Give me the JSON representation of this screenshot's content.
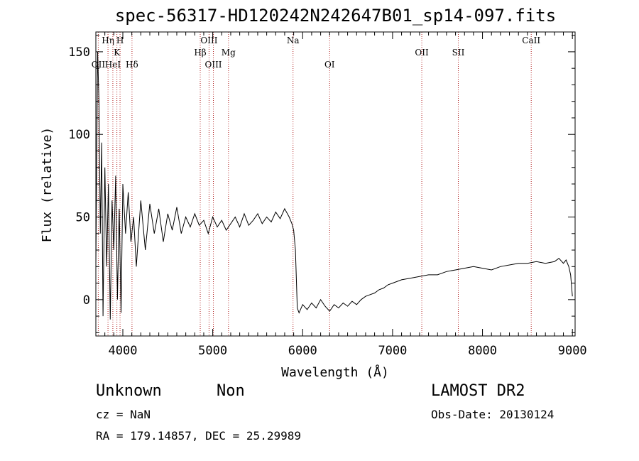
{
  "header": {
    "title": "spec-56317-HD120242N242647B01_sp14-097.fits"
  },
  "footer": {
    "class": "Unknown",
    "subclass": "Non",
    "survey": "LAMOST DR2",
    "cz": "cz = NaN",
    "obs_date": "Obs-Date: 20130124",
    "radec": "RA = 179.14857, DEC =  25.29989"
  },
  "chart_data": {
    "type": "line",
    "title": "spec-56317-HD120242N242647B01_sp14-097.fits",
    "xlabel": "Wavelength (Å)",
    "ylabel": "Flux (relative)",
    "xlim": [
      3700,
      9030
    ],
    "ylim": [
      -22,
      162
    ],
    "xticks": [
      4000,
      5000,
      6000,
      7000,
      8000,
      9000
    ],
    "yticks": [
      0,
      50,
      100,
      150
    ],
    "grid": false,
    "line_color": "#000000",
    "marker_color": "#b22222",
    "spectral_lines": [
      {
        "label": "OII",
        "x": 3727,
        "row": 3
      },
      {
        "label": "Hη",
        "x": 3835,
        "row": 1
      },
      {
        "label": "HeI",
        "x": 3889,
        "row": 3
      },
      {
        "label": "K",
        "x": 3934,
        "row": 2
      },
      {
        "label": "H",
        "x": 3969,
        "row": 1
      },
      {
        "label": "Hδ",
        "x": 4102,
        "row": 3
      },
      {
        "label": "Hβ",
        "x": 4861,
        "row": 2
      },
      {
        "label": "OIII",
        "x": 4959,
        "row": 1
      },
      {
        "label": "OIII",
        "x": 5007,
        "row": 3
      },
      {
        "label": "Mg",
        "x": 5175,
        "row": 2
      },
      {
        "label": "Na",
        "x": 5893,
        "row": 1
      },
      {
        "label": "OI",
        "x": 6300,
        "row": 3
      },
      {
        "label": "OII",
        "x": 7325,
        "row": 2
      },
      {
        "label": "SII",
        "x": 7731,
        "row": 2
      },
      {
        "label": "CaII",
        "x": 8542,
        "row": 1
      }
    ],
    "series": [
      {
        "x": [
          3700,
          3720,
          3735,
          3750,
          3765,
          3780,
          3800,
          3820,
          3840,
          3860,
          3880,
          3900,
          3920,
          3940,
          3960,
          3980,
          4000,
          4030,
          4060,
          4090,
          4120,
          4150,
          4200,
          4250,
          4300,
          4350,
          4400,
          4450,
          4500,
          4550,
          4600,
          4650,
          4700,
          4750,
          4800,
          4850,
          4900,
          4950,
          5000,
          5050,
          5100,
          5150,
          5200,
          5250,
          5300,
          5350,
          5400,
          5450,
          5500,
          5550,
          5600,
          5650,
          5700,
          5750,
          5800,
          5850,
          5880,
          5900,
          5920,
          5940,
          5960,
          6000,
          6050,
          6100,
          6150,
          6200,
          6250,
          6300,
          6350,
          6400,
          6450,
          6500,
          6550,
          6600,
          6650,
          6700,
          6750,
          6800,
          6850,
          6900,
          6950,
          7000,
          7100,
          7200,
          7300,
          7400,
          7500,
          7600,
          7700,
          7800,
          7900,
          8000,
          8100,
          8200,
          8300,
          8400,
          8500,
          8600,
          8700,
          8800,
          8850,
          8900,
          8930,
          8960,
          8980,
          9000
        ],
        "y": [
          20,
          150,
          120,
          40,
          95,
          -10,
          80,
          20,
          70,
          -12,
          60,
          30,
          75,
          0,
          55,
          -8,
          70,
          40,
          65,
          35,
          50,
          20,
          60,
          30,
          58,
          40,
          55,
          35,
          52,
          42,
          56,
          40,
          50,
          44,
          52,
          45,
          48,
          40,
          50,
          44,
          48,
          42,
          46,
          50,
          44,
          52,
          45,
          48,
          52,
          46,
          50,
          47,
          53,
          49,
          55,
          50,
          46,
          42,
          30,
          -5,
          -8,
          -3,
          -6,
          -2,
          -5,
          0,
          -4,
          -7,
          -3,
          -5,
          -2,
          -4,
          -1,
          -3,
          0,
          2,
          3,
          4,
          6,
          7,
          9,
          10,
          12,
          13,
          14,
          15,
          15,
          17,
          18,
          19,
          20,
          19,
          18,
          20,
          21,
          22,
          22,
          23,
          22,
          23,
          25,
          22,
          24,
          20,
          15,
          2
        ]
      }
    ]
  }
}
